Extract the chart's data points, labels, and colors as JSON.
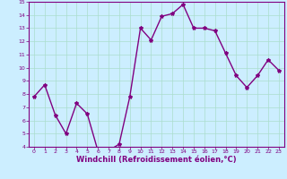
{
  "x": [
    0,
    1,
    2,
    3,
    4,
    5,
    6,
    7,
    8,
    9,
    10,
    11,
    12,
    13,
    14,
    15,
    16,
    17,
    18,
    19,
    20,
    21,
    22,
    23
  ],
  "y": [
    7.8,
    8.7,
    6.4,
    5.0,
    7.3,
    6.5,
    3.7,
    3.7,
    4.2,
    7.8,
    13.0,
    12.1,
    13.9,
    14.1,
    14.8,
    13.0,
    13.0,
    12.8,
    11.1,
    9.4,
    8.5,
    9.4,
    10.6,
    9.8
  ],
  "line_color": "#800080",
  "marker": "*",
  "marker_size": 3,
  "bg_color": "#cceeff",
  "grid_color": "#aaddcc",
  "xlabel": "Windchill (Refroidissement éolien,°C)",
  "xlabel_color": "#800080",
  "ylim": [
    4,
    15
  ],
  "xlim_min": -0.5,
  "xlim_max": 23.5,
  "yticks": [
    4,
    5,
    6,
    7,
    8,
    9,
    10,
    11,
    12,
    13,
    14,
    15
  ],
  "xticks": [
    0,
    1,
    2,
    3,
    4,
    5,
    6,
    7,
    8,
    9,
    10,
    11,
    12,
    13,
    14,
    15,
    16,
    17,
    18,
    19,
    20,
    21,
    22,
    23
  ],
  "tick_color": "#800080",
  "tick_fontsize": 4.5,
  "xlabel_fontsize": 6.0,
  "line_width": 1.0,
  "spine_color": "#800080",
  "bottom_bar_color": "#800080"
}
